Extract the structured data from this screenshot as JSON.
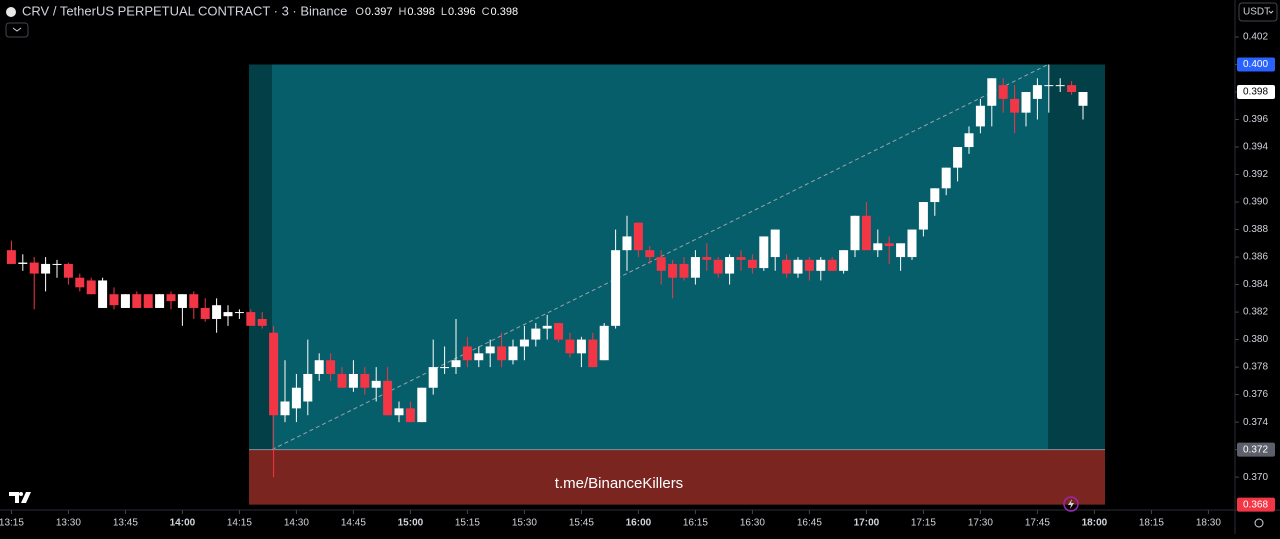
{
  "chart_data": {
    "type": "candlestick",
    "symbol": "CRV / TetherUS PERPETUAL CONTRACT · 3 · Binance",
    "ohlc_labels": [
      "O",
      "H",
      "L",
      "C"
    ],
    "currency": "USDT",
    "watermark": "t.me/BinanceKillers",
    "up_color": "#ffffff",
    "down_color": "#f23645",
    "x": [
      "13:15",
      "13:18",
      "13:21",
      "13:24",
      "13:27",
      "13:30",
      "13:33",
      "13:36",
      "13:39",
      "13:42",
      "13:45",
      "13:48",
      "13:51",
      "13:54",
      "13:57",
      "14:00",
      "14:03",
      "14:06",
      "14:09",
      "14:12",
      "14:15",
      "14:18",
      "14:21",
      "14:24",
      "14:27",
      "14:30",
      "14:33",
      "14:36",
      "14:39",
      "14:42",
      "14:45",
      "14:48",
      "14:51",
      "14:54",
      "14:57",
      "15:00",
      "15:03",
      "15:06",
      "15:09",
      "15:12",
      "15:15",
      "15:18",
      "15:21",
      "15:24",
      "15:27",
      "15:30",
      "15:33",
      "15:36",
      "15:39",
      "15:42",
      "15:45",
      "15:48",
      "15:51",
      "15:54",
      "15:57",
      "16:00",
      "16:03",
      "16:06",
      "16:09",
      "16:12",
      "16:15",
      "16:18",
      "16:21",
      "16:24",
      "16:27",
      "16:30",
      "16:33",
      "16:36",
      "16:39",
      "16:42",
      "16:45",
      "16:48",
      "16:51",
      "16:54",
      "16:57",
      "17:00",
      "17:03",
      "17:06",
      "17:09",
      "17:12",
      "17:15",
      "17:18",
      "17:21",
      "17:24",
      "17:27",
      "17:30",
      "17:33",
      "17:36",
      "17:39",
      "17:42",
      "17:45",
      "17:48",
      "17:51",
      "17:54",
      "17:57"
    ],
    "open": [
      0.3865,
      0.3855,
      0.3856,
      0.3848,
      0.3855,
      0.3855,
      0.3845,
      0.3843,
      0.3823,
      0.3833,
      0.3823,
      0.3833,
      0.3833,
      0.3823,
      0.3833,
      0.3823,
      0.3833,
      0.3823,
      0.3815,
      0.3817,
      0.382,
      0.382,
      0.3815,
      0.3805,
      0.3745,
      0.375,
      0.3755,
      0.3775,
      0.3785,
      0.3775,
      0.3765,
      0.3775,
      0.3765,
      0.377,
      0.3745,
      0.375,
      0.374,
      0.3765,
      0.378,
      0.378,
      0.3795,
      0.3785,
      0.379,
      0.3795,
      0.3785,
      0.3795,
      0.38,
      0.3808,
      0.3812,
      0.38,
      0.379,
      0.38,
      0.3785,
      0.381,
      0.3865,
      0.3885,
      0.3865,
      0.386,
      0.3855,
      0.3855,
      0.3845,
      0.386,
      0.3858,
      0.3848,
      0.386,
      0.3858,
      0.3852,
      0.386,
      0.3858,
      0.3848,
      0.3858,
      0.385,
      0.3858,
      0.385,
      0.3865,
      0.389,
      0.3865,
      0.387,
      0.386,
      0.386,
      0.388,
      0.39,
      0.391,
      0.3925,
      0.394,
      0.3955,
      0.397,
      0.3985,
      0.3975,
      0.3965,
      0.3975,
      0.3985,
      0.3985,
      0.3985,
      0.397
    ],
    "high": [
      0.3872,
      0.3862,
      0.386,
      0.386,
      0.3858,
      0.3856,
      0.3848,
      0.3845,
      0.3845,
      0.3838,
      0.3833,
      0.3835,
      0.3833,
      0.3833,
      0.3835,
      0.3833,
      0.3835,
      0.383,
      0.383,
      0.3825,
      0.3822,
      0.3822,
      0.382,
      0.381,
      0.3785,
      0.3775,
      0.38,
      0.379,
      0.379,
      0.378,
      0.3785,
      0.378,
      0.378,
      0.378,
      0.3755,
      0.3755,
      0.3765,
      0.38,
      0.3795,
      0.3815,
      0.3802,
      0.3795,
      0.38,
      0.3805,
      0.38,
      0.381,
      0.3812,
      0.3818,
      0.3812,
      0.3805,
      0.3802,
      0.3805,
      0.3812,
      0.388,
      0.389,
      0.3885,
      0.3868,
      0.3865,
      0.3858,
      0.386,
      0.3865,
      0.387,
      0.386,
      0.3862,
      0.3865,
      0.3862,
      0.3875,
      0.388,
      0.3862,
      0.386,
      0.386,
      0.386,
      0.386,
      0.3865,
      0.389,
      0.39,
      0.388,
      0.3875,
      0.387,
      0.388,
      0.39,
      0.391,
      0.3925,
      0.394,
      0.3955,
      0.3975,
      0.399,
      0.399,
      0.3985,
      0.398,
      0.399,
      0.4,
      0.399,
      0.3988,
      0.398
    ],
    "low": [
      0.3855,
      0.385,
      0.3822,
      0.3835,
      0.3845,
      0.384,
      0.3835,
      0.3833,
      0.3823,
      0.3822,
      0.3823,
      0.3823,
      0.3823,
      0.3823,
      0.3822,
      0.381,
      0.3815,
      0.3813,
      0.3805,
      0.381,
      0.3815,
      0.381,
      0.3808,
      0.37,
      0.374,
      0.374,
      0.3745,
      0.377,
      0.377,
      0.3765,
      0.3762,
      0.376,
      0.3755,
      0.3745,
      0.374,
      0.374,
      0.374,
      0.376,
      0.3775,
      0.3775,
      0.378,
      0.378,
      0.378,
      0.378,
      0.3782,
      0.3785,
      0.3795,
      0.38,
      0.3798,
      0.3787,
      0.378,
      0.378,
      0.3785,
      0.3808,
      0.385,
      0.386,
      0.3855,
      0.384,
      0.383,
      0.3843,
      0.384,
      0.385,
      0.3845,
      0.384,
      0.385,
      0.3848,
      0.385,
      0.385,
      0.3845,
      0.3845,
      0.3843,
      0.3843,
      0.385,
      0.3848,
      0.386,
      0.3865,
      0.386,
      0.3855,
      0.385,
      0.3858,
      0.3875,
      0.389,
      0.3905,
      0.3915,
      0.3935,
      0.395,
      0.3955,
      0.3965,
      0.395,
      0.3955,
      0.396,
      0.3965,
      0.398,
      0.3978,
      0.396
    ],
    "close": [
      0.3855,
      0.3856,
      0.3848,
      0.3855,
      0.3855,
      0.3845,
      0.3838,
      0.3833,
      0.3843,
      0.3825,
      0.3833,
      0.3823,
      0.3823,
      0.3833,
      0.3828,
      0.3833,
      0.3823,
      0.3815,
      0.3825,
      0.382,
      0.382,
      0.381,
      0.381,
      0.3745,
      0.3755,
      0.3765,
      0.3775,
      0.3785,
      0.3775,
      0.3765,
      0.3775,
      0.3765,
      0.377,
      0.3745,
      0.375,
      0.374,
      0.3765,
      0.378,
      0.378,
      0.3785,
      0.3785,
      0.379,
      0.3795,
      0.3785,
      0.3795,
      0.38,
      0.3808,
      0.381,
      0.38,
      0.379,
      0.38,
      0.378,
      0.381,
      0.3865,
      0.3875,
      0.3865,
      0.386,
      0.385,
      0.3845,
      0.3845,
      0.386,
      0.3858,
      0.3848,
      0.386,
      0.3858,
      0.3852,
      0.3875,
      0.388,
      0.3848,
      0.3858,
      0.385,
      0.3858,
      0.385,
      0.3865,
      0.389,
      0.3865,
      0.387,
      0.3868,
      0.387,
      0.388,
      0.39,
      0.391,
      0.3925,
      0.394,
      0.395,
      0.397,
      0.399,
      0.3975,
      0.3965,
      0.398,
      0.3985,
      0.3985,
      0.3985,
      0.398,
      0.398
    ],
    "xlim": [
      "13:12",
      "18:37"
    ],
    "xticks": [
      "13:15",
      "13:30",
      "13:45",
      "14:00",
      "14:15",
      "14:30",
      "14:45",
      "15:00",
      "15:15",
      "15:30",
      "15:45",
      "16:00",
      "16:15",
      "16:30",
      "16:45",
      "17:00",
      "17:15",
      "17:30",
      "17:45",
      "18:00",
      "18:15",
      "18:30"
    ],
    "ylim": [
      0.36761,
      0.40469
    ],
    "yticks": [
      {
        "value": 0.37,
        "label": "0.370"
      },
      0.372,
      0.374,
      0.376,
      0.378,
      {
        "value": 0.38,
        "label": "0.380"
      },
      0.382,
      0.384,
      0.386,
      0.388,
      {
        "value": 0.39,
        "label": "0.390"
      },
      0.392,
      0.394,
      0.396,
      0.398,
      {
        "value": 0.4,
        "label": "0.400"
      },
      0.402
    ],
    "price_markers": [
      {
        "value": 0.4,
        "label": "0.400",
        "color": "#2962ff"
      },
      {
        "value": 0.398,
        "color": "#ffffff"
      },
      {
        "value": 0.372,
        "color": "#5d606b"
      },
      {
        "value": 0.368,
        "color": "#f23645"
      }
    ]
  }
}
